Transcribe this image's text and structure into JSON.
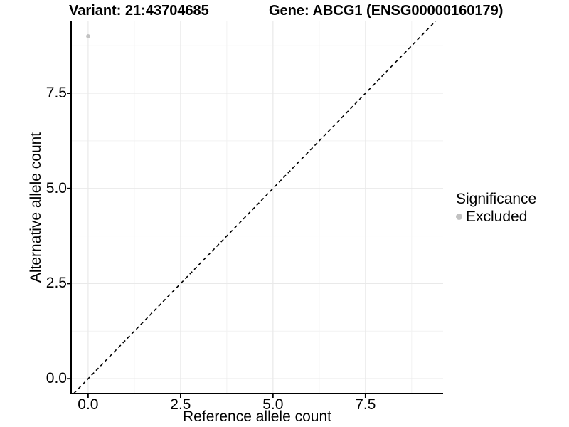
{
  "titles": {
    "variant": "Variant: 21:43704685",
    "gene": "Gene: ABCG1 (ENSG00000160179)"
  },
  "legend": {
    "title": "Significance",
    "items": [
      {
        "label": "Excluded",
        "color": "#c2c2c2"
      }
    ]
  },
  "chart_data": {
    "type": "scatter",
    "title": "",
    "xlabel": "Reference allele count",
    "ylabel": "Alternative allele count",
    "xlim": [
      -0.46,
      9.6
    ],
    "ylim": [
      -0.39,
      9.39
    ],
    "x_ticks": {
      "values": [
        0,
        2.5,
        5,
        7.5
      ],
      "labels": [
        "0.0",
        "2.5",
        "5.0",
        "7.5"
      ]
    },
    "y_ticks": {
      "values": [
        0,
        2.5,
        5,
        7.5
      ],
      "labels": [
        "0.0",
        "2.5",
        "5.0",
        "7.5"
      ]
    },
    "x_minor": [
      1.25,
      3.75,
      6.25,
      8.75
    ],
    "y_minor": [
      1.25,
      3.75,
      6.25,
      8.75
    ],
    "grid": true,
    "legend_position": "right",
    "series": [
      {
        "name": "Excluded",
        "color": "#c2c2c2",
        "point_radius": 2.8,
        "points": [
          {
            "x": 0,
            "y": 9
          }
        ]
      }
    ],
    "reference_line": {
      "type": "identity",
      "slope": 1,
      "intercept": 0,
      "linetype": "dashed",
      "color": "#000000"
    },
    "colors": {
      "axis": "#000000",
      "grid_major": "#e9e9e9",
      "grid_minor": "#f2f2f2",
      "background": "#ffffff"
    }
  }
}
